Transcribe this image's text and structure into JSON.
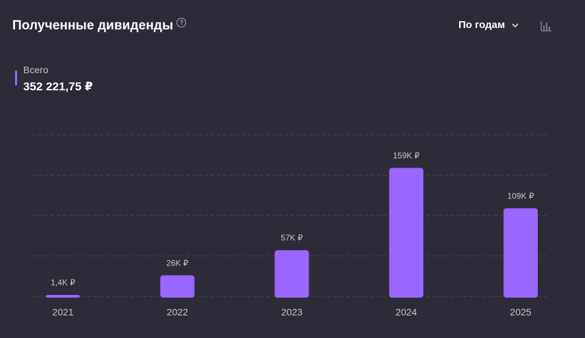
{
  "header": {
    "title": "Полученные дивиденды",
    "help_icon": "question-circle-icon",
    "period_select": "По годам",
    "chevron_icon": "chevron-down-icon",
    "chart_type_icon": "bar-chart-icon"
  },
  "total": {
    "label": "Всего",
    "value": "352 221,75 ₽"
  },
  "colors": {
    "background": "#2c2b37",
    "bar": "#9966ff",
    "grid": "#4a4956",
    "muted_text": "#c9c8d1"
  },
  "chart_data": {
    "type": "bar",
    "categories": [
      "2021",
      "2022",
      "2023",
      "2024",
      "2025"
    ],
    "values": [
      1400,
      26000,
      57000,
      159000,
      109000
    ],
    "data_labels": [
      "1,4K ₽",
      "26K ₽",
      "57K ₽",
      "159K ₽",
      "109K ₽"
    ],
    "title": "Полученные дивиденды",
    "xlabel": "",
    "ylabel": "",
    "ylim": [
      0,
      200000
    ],
    "grid": true,
    "y_axis_labels": false
  }
}
